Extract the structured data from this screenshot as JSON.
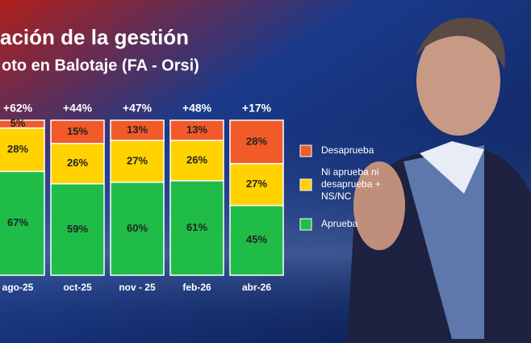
{
  "chart_data": {
    "type": "stacked-bar",
    "title": "ación de la gestión",
    "subtitle": "oto en Balotaje (FA - Orsi)",
    "categories": [
      "ago-25",
      "oct-25",
      "nov - 25",
      "feb-26",
      "abr-26"
    ],
    "series": [
      {
        "name": "Aprueba",
        "color": "#1fbd48",
        "values": [
          67,
          59,
          60,
          61,
          45
        ],
        "value_labels": [
          "67%",
          "59%",
          "60%",
          "61%",
          "45%"
        ]
      },
      {
        "name": "Ni aprueba ni desaprueba + NS/NC",
        "color": "#ffd200",
        "values": [
          28,
          26,
          27,
          26,
          27
        ],
        "value_labels": [
          "28%",
          "26%",
          "27%",
          "26%",
          "27%"
        ]
      },
      {
        "name": "Desaprueba",
        "color": "#f25a2a",
        "values": [
          5,
          15,
          13,
          13,
          28
        ],
        "value_labels": [
          "5%",
          "15%",
          "13%",
          "13%",
          "28%"
        ]
      }
    ],
    "net": {
      "values": [
        62,
        44,
        47,
        48,
        17
      ],
      "value_labels": [
        "+62%",
        "+44%",
        "+47%",
        "+48%",
        "+17%"
      ]
    },
    "legend_order": [
      2,
      1,
      0
    ]
  }
}
